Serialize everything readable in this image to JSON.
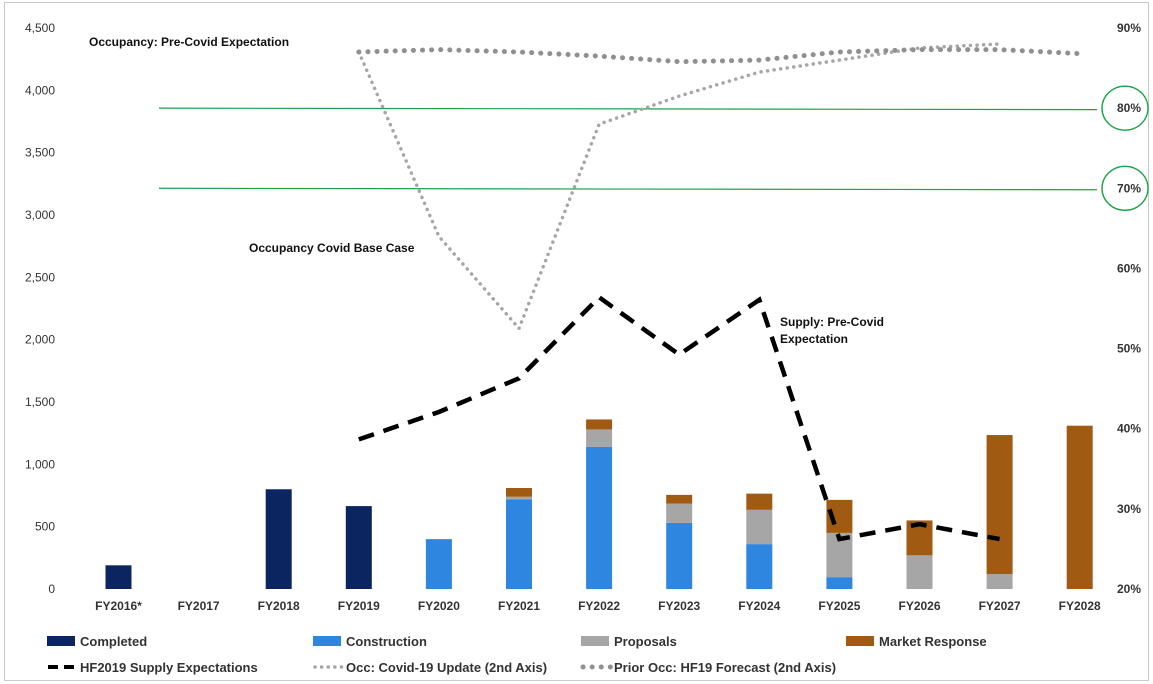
{
  "chart_data": {
    "type": "bar",
    "stacked": true,
    "categories": [
      "FY2016*",
      "FY2017",
      "FY2018",
      "FY2019",
      "FY2020",
      "FY2021",
      "FY2022",
      "FY2023",
      "FY2024",
      "FY2025",
      "FY2026",
      "FY2027",
      "FY2028"
    ],
    "y_ticks": [
      "0",
      "500",
      "1,000",
      "1,500",
      "2,000",
      "2,500",
      "3,000",
      "3,500",
      "4,000",
      "4,500"
    ],
    "ylim": [
      0,
      4500
    ],
    "y2_ticks": [
      "20%",
      "30%",
      "40%",
      "50%",
      "60%",
      "70%",
      "80%",
      "90%"
    ],
    "y2lim": [
      20,
      90
    ],
    "grid": false,
    "legend_position": "bottom",
    "series": [
      {
        "name": "Completed",
        "type": "bar",
        "color": "#0b2560",
        "values": [
          190,
          0,
          800,
          665,
          0,
          0,
          0,
          0,
          0,
          0,
          0,
          0,
          0
        ]
      },
      {
        "name": "Construction",
        "type": "bar",
        "color": "#2e86e0",
        "values": [
          0,
          0,
          0,
          0,
          400,
          720,
          1140,
          530,
          360,
          95,
          0,
          0,
          0
        ]
      },
      {
        "name": "Proposals",
        "type": "bar",
        "color": "#a6a6a6",
        "values": [
          0,
          0,
          0,
          0,
          0,
          20,
          140,
          155,
          275,
          355,
          270,
          120,
          0
        ]
      },
      {
        "name": "Market Response",
        "type": "bar",
        "color": "#a05a12",
        "values": [
          0,
          0,
          0,
          0,
          0,
          70,
          80,
          70,
          130,
          265,
          280,
          1115,
          1310
        ]
      },
      {
        "name": "HF2019 Supply Expectations",
        "type": "line",
        "style": "dashed",
        "color": "#000000",
        "axis": "primary",
        "values": [
          null,
          null,
          null,
          1200,
          1420,
          1690,
          2340,
          1880,
          2320,
          400,
          520,
          400,
          null
        ]
      },
      {
        "name": "Occ: Covid-19 Update (2nd Axis)",
        "type": "line",
        "style": "dotted",
        "color": "#a6a6a6",
        "axis": "secondary",
        "values": [
          null,
          null,
          null,
          87,
          64,
          52.5,
          78,
          81.5,
          84.5,
          86,
          87.5,
          88,
          null
        ]
      },
      {
        "name": "Prior Occ: HF19 Forecast (2nd Axis)",
        "type": "line",
        "style": "dotted-round",
        "color": "#909090",
        "axis": "secondary",
        "values": [
          null,
          null,
          null,
          87,
          87.3,
          87,
          86.5,
          85.8,
          86,
          87,
          87.3,
          87.3,
          86.8
        ]
      }
    ],
    "reference_lines": [
      {
        "value": 80,
        "axis": "secondary",
        "color": "#1aa34a"
      },
      {
        "value": 70,
        "axis": "secondary",
        "color": "#1aa34a"
      }
    ],
    "annotations": [
      {
        "text_lines": [
          "Occupancy: Pre-Covid Expectation"
        ]
      },
      {
        "text_lines": [
          "Occupancy Covid Base Case"
        ]
      },
      {
        "text_lines": [
          "Supply: Pre-Covid",
          "Expectation"
        ]
      }
    ]
  }
}
